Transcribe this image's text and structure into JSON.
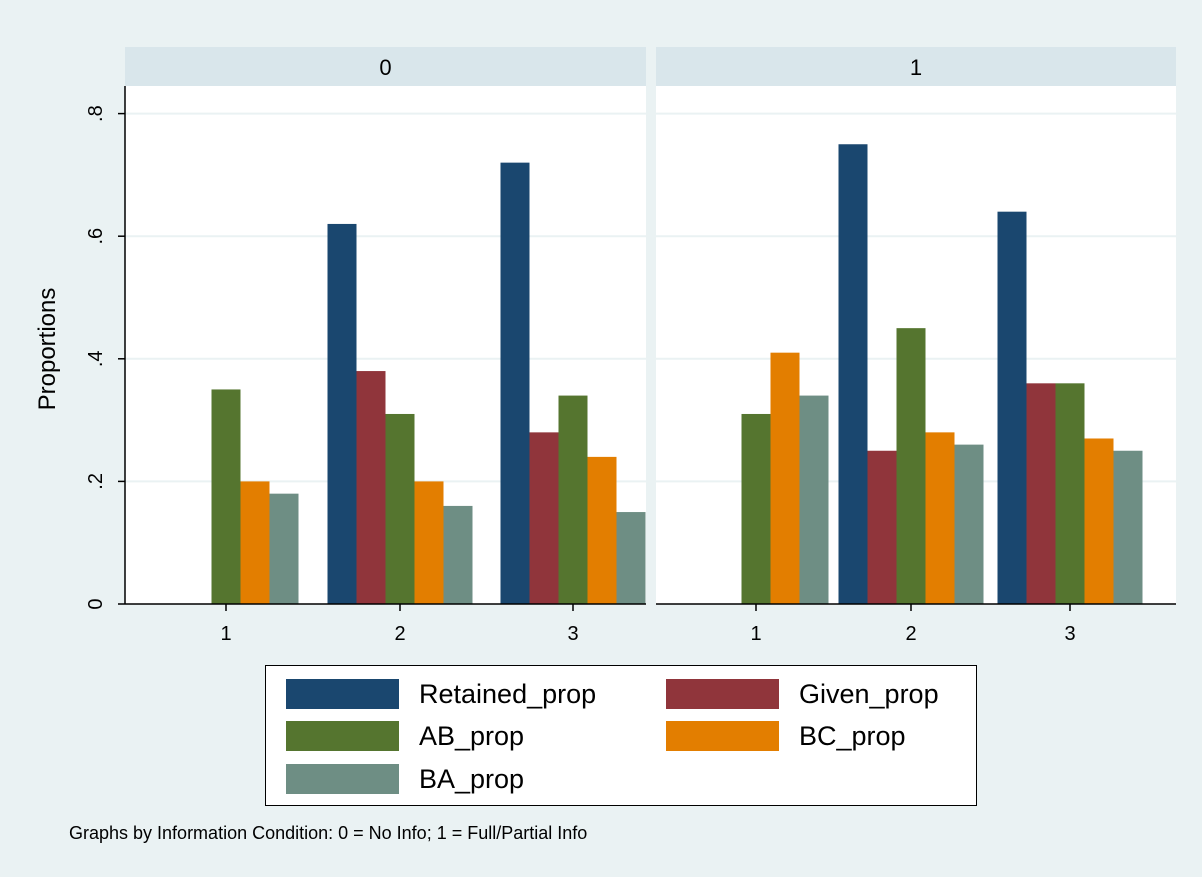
{
  "chart_data": {
    "type": "bar",
    "ylabel": "Proportions",
    "ylim": [
      0,
      0.8
    ],
    "yticks": [
      {
        "value": 0,
        "label": "0"
      },
      {
        "value": 0.2,
        "label": ".2"
      },
      {
        "value": 0.4,
        "label": ".4"
      },
      {
        "value": 0.6,
        "label": ".6"
      },
      {
        "value": 0.8,
        "label": ".8"
      }
    ],
    "categories": [
      "1",
      "2",
      "3"
    ],
    "series_styles": [
      {
        "name": "Retained_prop",
        "color": "#1a476f"
      },
      {
        "name": "Given_prop",
        "color": "#90353b"
      },
      {
        "name": "AB_prop",
        "color": "#55752f"
      },
      {
        "name": "BC_prop",
        "color": "#e37e00"
      },
      {
        "name": "BA_prop",
        "color": "#6e8e84"
      }
    ],
    "panels": [
      {
        "title": "0",
        "series": [
          {
            "name": "Retained_prop",
            "values": [
              null,
              0.62,
              0.72
            ]
          },
          {
            "name": "Given_prop",
            "values": [
              null,
              0.38,
              0.28
            ]
          },
          {
            "name": "AB_prop",
            "values": [
              0.35,
              0.31,
              0.34
            ]
          },
          {
            "name": "BC_prop",
            "values": [
              0.2,
              0.2,
              0.24
            ]
          },
          {
            "name": "BA_prop",
            "values": [
              0.18,
              0.16,
              0.15
            ]
          }
        ]
      },
      {
        "title": "1",
        "series": [
          {
            "name": "Retained_prop",
            "values": [
              null,
              0.75,
              0.64
            ]
          },
          {
            "name": "Given_prop",
            "values": [
              null,
              0.25,
              0.36
            ]
          },
          {
            "name": "AB_prop",
            "values": [
              0.31,
              0.45,
              0.36
            ]
          },
          {
            "name": "BC_prop",
            "values": [
              0.41,
              0.28,
              0.27
            ]
          },
          {
            "name": "BA_prop",
            "values": [
              0.34,
              0.26,
              0.25
            ]
          }
        ]
      }
    ],
    "legend": {
      "placement": "bottom",
      "entries": [
        "Retained_prop",
        "Given_prop",
        "AB_prop",
        "BC_prop",
        "BA_prop"
      ]
    },
    "note": "Graphs by Information Condition: 0 = No Info; 1 = Full/Partial Info",
    "grid": true
  }
}
